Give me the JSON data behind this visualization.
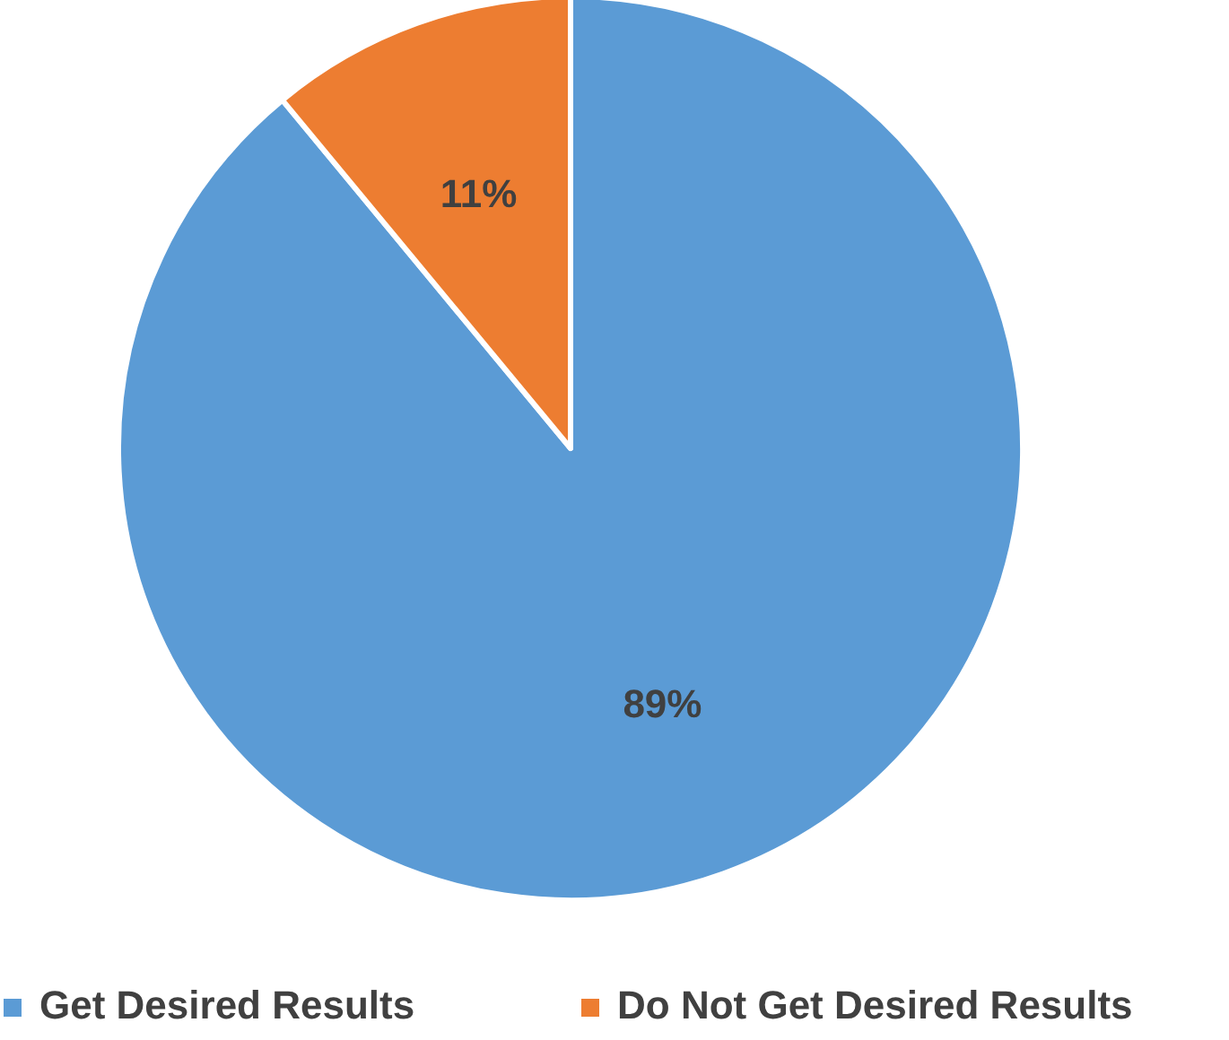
{
  "chart_data": {
    "type": "pie",
    "categories": [
      "Get Desired Results",
      "Do Not Get Desired Results"
    ],
    "values": [
      89,
      11
    ],
    "colors": [
      "#5b9bd5",
      "#ed7d31"
    ],
    "value_labels": [
      "89%",
      "11%"
    ],
    "legend": "bottom"
  }
}
